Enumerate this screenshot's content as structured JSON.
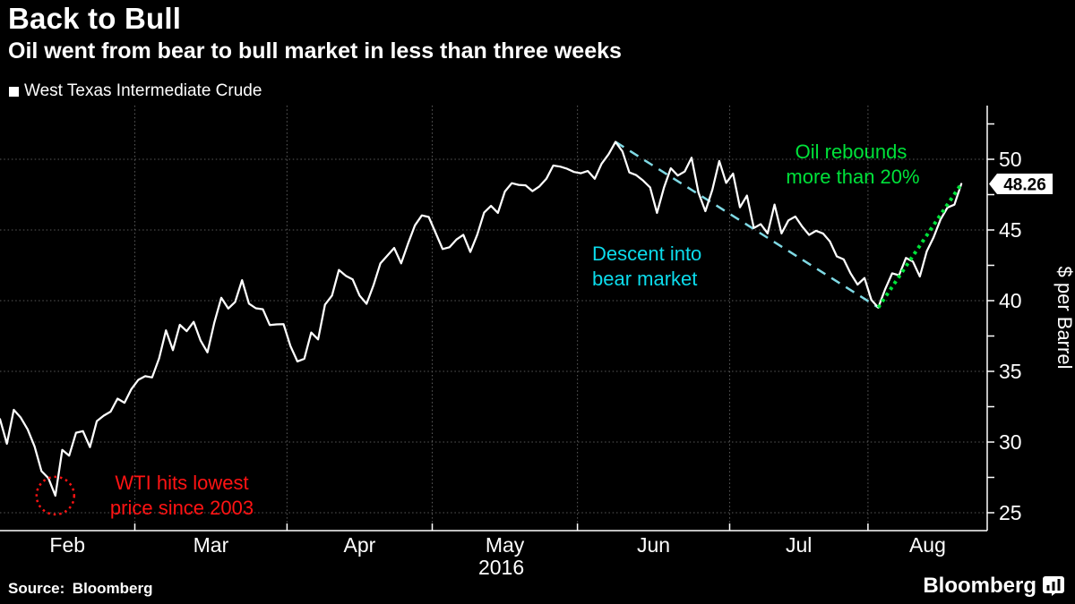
{
  "header": {
    "title": "Back to Bull",
    "subtitle": "Oil went from bear to bull market in less than three weeks"
  },
  "legend": {
    "label": "West Texas Intermediate Crude"
  },
  "footer": {
    "source": "Source: Bloomberg",
    "brand": "Bloomberg"
  },
  "last_value_label": "48.26",
  "colors": {
    "background": "#000000",
    "price_line": "#ffffff",
    "grid": "#595959",
    "axis": "#ffffff",
    "annotation_red": "#ff1313",
    "annotation_cyan": "#0cdcec",
    "annotation_cyan_dash": "#7fd9e4",
    "annotation_green": "#00e23a",
    "tag_background": "#ffffff",
    "tag_text": "#000000"
  },
  "annotations": {
    "low": {
      "line1": "WTI hits lowest",
      "line2": "price since 2003",
      "point_index": 8
    },
    "bear": {
      "line1": "Descent into",
      "line2": "bear market",
      "from_index": 89,
      "to_index": 127
    },
    "bull": {
      "line1": "Oil rebounds",
      "line2": "more than 20%",
      "from_index": 127,
      "to_index": 139
    }
  },
  "chart_data": {
    "type": "line",
    "title": "Back to Bull",
    "subtitle": "Oil went from bear to bull market in less than three weeks",
    "xlabel": "",
    "ylabel": "$ per Barrel",
    "ylim": [
      23.7,
      53.8
    ],
    "y_ticks": [
      25,
      30,
      35,
      40,
      45,
      50
    ],
    "y_minor_tick_step": 2.5,
    "x_tick_labels": [
      "Feb",
      "Mar",
      "Apr",
      "May",
      "Jun",
      "Jul",
      "Aug"
    ],
    "year_label": "2016",
    "grid": "dotted",
    "legend_position": "top-left",
    "series": [
      {
        "name": "West Texas Intermediate Crude",
        "dates": [
          "2016-02-01",
          "2016-02-02",
          "2016-02-03",
          "2016-02-04",
          "2016-02-05",
          "2016-02-08",
          "2016-02-09",
          "2016-02-10",
          "2016-02-11",
          "2016-02-12",
          "2016-02-16",
          "2016-02-17",
          "2016-02-18",
          "2016-02-19",
          "2016-02-22",
          "2016-02-23",
          "2016-02-24",
          "2016-02-25",
          "2016-02-26",
          "2016-02-29",
          "2016-03-01",
          "2016-03-02",
          "2016-03-03",
          "2016-03-04",
          "2016-03-07",
          "2016-03-08",
          "2016-03-09",
          "2016-03-10",
          "2016-03-11",
          "2016-03-14",
          "2016-03-15",
          "2016-03-16",
          "2016-03-17",
          "2016-03-18",
          "2016-03-21",
          "2016-03-22",
          "2016-03-23",
          "2016-03-24",
          "2016-03-28",
          "2016-03-29",
          "2016-03-30",
          "2016-03-31",
          "2016-04-01",
          "2016-04-04",
          "2016-04-05",
          "2016-04-06",
          "2016-04-07",
          "2016-04-08",
          "2016-04-11",
          "2016-04-12",
          "2016-04-13",
          "2016-04-14",
          "2016-04-15",
          "2016-04-18",
          "2016-04-19",
          "2016-04-20",
          "2016-04-21",
          "2016-04-22",
          "2016-04-25",
          "2016-04-26",
          "2016-04-27",
          "2016-04-28",
          "2016-04-29",
          "2016-05-02",
          "2016-05-03",
          "2016-05-04",
          "2016-05-05",
          "2016-05-06",
          "2016-05-09",
          "2016-05-10",
          "2016-05-11",
          "2016-05-12",
          "2016-05-13",
          "2016-05-16",
          "2016-05-17",
          "2016-05-18",
          "2016-05-19",
          "2016-05-20",
          "2016-05-23",
          "2016-05-24",
          "2016-05-25",
          "2016-05-26",
          "2016-05-27",
          "2016-05-31",
          "2016-06-01",
          "2016-06-02",
          "2016-06-03",
          "2016-06-06",
          "2016-06-07",
          "2016-06-08",
          "2016-06-09",
          "2016-06-10",
          "2016-06-13",
          "2016-06-14",
          "2016-06-15",
          "2016-06-16",
          "2016-06-17",
          "2016-06-20",
          "2016-06-21",
          "2016-06-22",
          "2016-06-23",
          "2016-06-24",
          "2016-06-27",
          "2016-06-28",
          "2016-06-29",
          "2016-06-30",
          "2016-07-01",
          "2016-07-05",
          "2016-07-06",
          "2016-07-07",
          "2016-07-08",
          "2016-07-11",
          "2016-07-12",
          "2016-07-13",
          "2016-07-14",
          "2016-07-15",
          "2016-07-18",
          "2016-07-19",
          "2016-07-20",
          "2016-07-21",
          "2016-07-22",
          "2016-07-25",
          "2016-07-26",
          "2016-07-27",
          "2016-07-28",
          "2016-07-29",
          "2016-08-01",
          "2016-08-02",
          "2016-08-03",
          "2016-08-04",
          "2016-08-05",
          "2016-08-08",
          "2016-08-09",
          "2016-08-10",
          "2016-08-11",
          "2016-08-12",
          "2016-08-15",
          "2016-08-16",
          "2016-08-17",
          "2016-08-18"
        ],
        "values": [
          31.62,
          29.88,
          32.28,
          31.72,
          30.89,
          29.69,
          27.94,
          27.45,
          26.21,
          29.44,
          29.04,
          30.66,
          30.77,
          29.64,
          31.48,
          31.87,
          32.15,
          33.07,
          32.78,
          33.75,
          34.4,
          34.66,
          34.57,
          35.92,
          37.9,
          36.5,
          38.29,
          37.84,
          38.5,
          37.18,
          36.34,
          38.46,
          40.2,
          39.44,
          39.91,
          41.45,
          39.79,
          39.46,
          39.39,
          38.28,
          38.32,
          38.34,
          36.79,
          35.7,
          35.89,
          37.75,
          37.26,
          39.72,
          40.36,
          42.17,
          41.76,
          41.5,
          40.36,
          39.78,
          41.08,
          42.63,
          43.18,
          43.73,
          42.64,
          44.04,
          45.33,
          46.03,
          45.92,
          44.78,
          43.65,
          43.78,
          44.32,
          44.66,
          43.44,
          44.66,
          46.23,
          46.7,
          46.21,
          47.72,
          48.31,
          48.19,
          48.16,
          47.75,
          48.08,
          48.62,
          49.56,
          49.48,
          49.33,
          49.1,
          49.01,
          49.17,
          48.62,
          49.69,
          50.36,
          51.23,
          50.56,
          49.07,
          48.88,
          48.49,
          48.01,
          46.21,
          47.98,
          49.37,
          48.85,
          49.13,
          50.11,
          47.64,
          46.33,
          47.85,
          49.88,
          48.33,
          48.99,
          46.6,
          47.43,
          45.14,
          45.41,
          44.76,
          46.8,
          44.75,
          45.68,
          45.95,
          45.24,
          44.65,
          44.94,
          44.75,
          44.19,
          43.13,
          42.92,
          41.92,
          41.14,
          41.6,
          40.06,
          39.51,
          40.83,
          41.93,
          41.8,
          43.02,
          42.77,
          41.71,
          43.49,
          44.49,
          45.74,
          46.58,
          46.79,
          48.26
        ]
      }
    ]
  }
}
